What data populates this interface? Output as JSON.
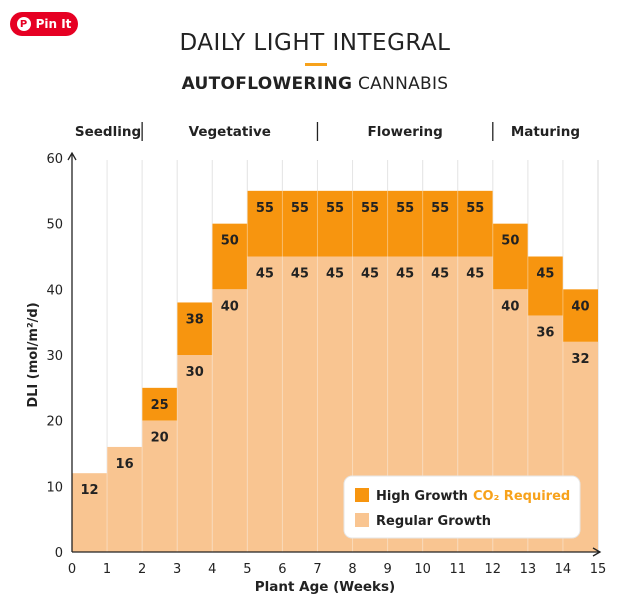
{
  "pin": {
    "label": "Pin It"
  },
  "chart_data": {
    "type": "bar",
    "title": "DAILY LIGHT INTEGRAL",
    "subtitle_bold": "AUTOFLOWERING",
    "subtitle_rest": "CANNABIS",
    "xlabel": "Plant Age (Weeks)",
    "ylabel": "DLI (mol/m²/d)",
    "xlim": [
      0,
      15
    ],
    "ylim": [
      0,
      60
    ],
    "x_ticks": [
      0,
      1,
      2,
      3,
      4,
      5,
      6,
      7,
      8,
      9,
      10,
      11,
      12,
      13,
      14,
      15
    ],
    "y_ticks": [
      0,
      10,
      20,
      30,
      40,
      50,
      60
    ],
    "categories": [
      "0-1",
      "1-2",
      "2-3",
      "3-4",
      "4-5",
      "5-6",
      "6-7",
      "7-8",
      "8-9",
      "9-10",
      "10-11",
      "11-12",
      "12-13",
      "13-14",
      "14-15"
    ],
    "series": [
      {
        "name": "Regular Growth",
        "values": [
          12,
          16,
          20,
          30,
          40,
          45,
          45,
          45,
          45,
          45,
          45,
          45,
          40,
          36,
          32
        ]
      },
      {
        "name": "High Growth",
        "values": [
          null,
          null,
          25,
          38,
          50,
          55,
          55,
          55,
          55,
          55,
          55,
          55,
          50,
          45,
          40
        ]
      }
    ],
    "stages": [
      {
        "label": "Seedling",
        "start": 0,
        "end": 2
      },
      {
        "label": "Vegetative",
        "start": 2,
        "end": 7
      },
      {
        "label": "Flowering",
        "start": 7,
        "end": 12
      },
      {
        "label": "Maturing",
        "start": 12,
        "end": 15
      }
    ],
    "legend": {
      "position": "bottom-right",
      "high_label": "High Growth",
      "high_note": "CO₂ Required",
      "regular_label": "Regular Growth"
    },
    "colors": {
      "regular": "#f9c591",
      "high": "#f7950f",
      "note": "#f7a21b",
      "grid": "#d9d9d9",
      "axis": "#222222"
    }
  }
}
